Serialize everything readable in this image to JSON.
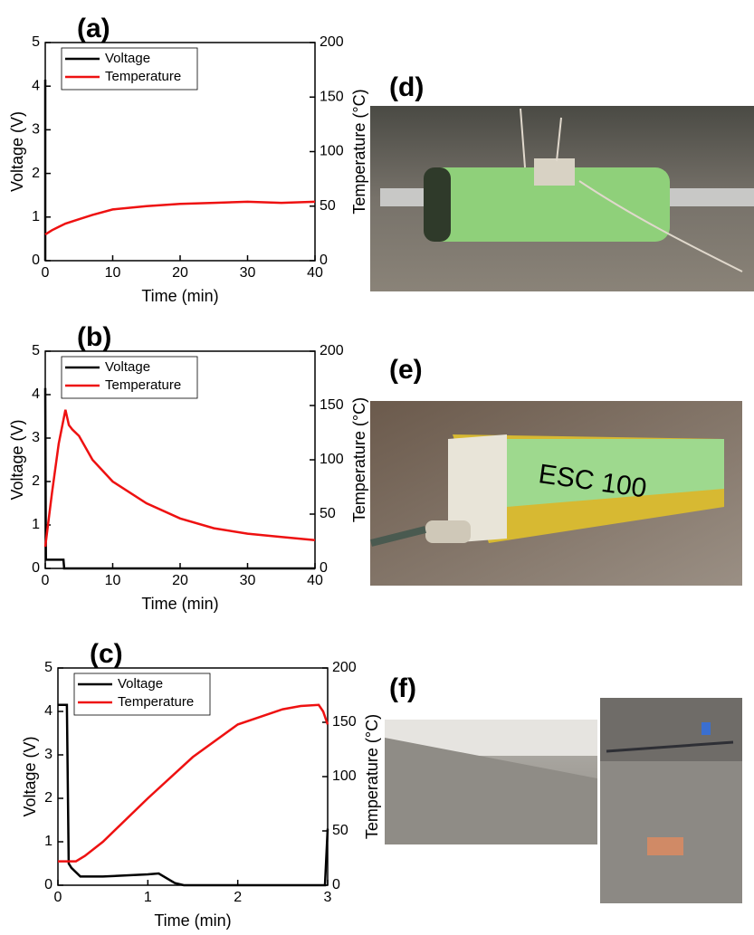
{
  "chart_data": [
    {
      "type": "line",
      "panel": "(a)",
      "x_label": "Time (min)",
      "y_label": "Voltage (V)",
      "y2_label": "Temperature (°C)",
      "xlim": [
        0,
        40
      ],
      "xticks": [
        0,
        10,
        20,
        30,
        40
      ],
      "ylim": [
        0,
        5
      ],
      "yticks": [
        0,
        1,
        2,
        3,
        4,
        5
      ],
      "y2lim": [
        0,
        200
      ],
      "y2ticks": [
        0,
        50,
        100,
        150,
        200
      ],
      "series": [
        {
          "name": "Voltage",
          "color": "#000000",
          "x": [
            0,
            0
          ],
          "values": [
            4.15,
            0
          ]
        },
        {
          "name": "Temperature",
          "color": "#ee1111",
          "axis": "y2",
          "x": [
            0,
            1,
            2,
            3,
            5,
            7,
            10,
            15,
            20,
            25,
            30,
            35,
            40
          ],
          "values": [
            24,
            28,
            31,
            34,
            38,
            42,
            47,
            50,
            52,
            53,
            54,
            53,
            54
          ]
        }
      ]
    },
    {
      "type": "line",
      "panel": "(b)",
      "x_label": "Time (min)",
      "y_label": "Voltage (V)",
      "y2_label": "Temperature (°C)",
      "xlim": [
        0,
        40
      ],
      "xticks": [
        0,
        10,
        20,
        30,
        40
      ],
      "ylim": [
        0,
        5
      ],
      "yticks": [
        0,
        1,
        2,
        3,
        4,
        5
      ],
      "y2lim": [
        0,
        200
      ],
      "y2ticks": [
        0,
        50,
        100,
        150,
        200
      ],
      "series": [
        {
          "name": "Voltage",
          "color": "#000000",
          "x": [
            0,
            0.1,
            2.7,
            2.8,
            40
          ],
          "values": [
            4.15,
            0.2,
            0.2,
            0,
            0
          ]
        },
        {
          "name": "Temperature",
          "color": "#ee1111",
          "axis": "y2",
          "x": [
            0,
            1,
            2,
            3,
            3.5,
            4,
            5,
            7,
            10,
            15,
            20,
            25,
            30,
            35,
            40
          ],
          "values": [
            20,
            70,
            115,
            146,
            132,
            128,
            122,
            100,
            80,
            60,
            46,
            37,
            32,
            29,
            26
          ]
        }
      ]
    },
    {
      "type": "line",
      "panel": "(c)",
      "x_label": "Time (min)",
      "y_label": "Voltage (V)",
      "y2_label": "Temperature (°C)",
      "xlim": [
        0,
        3
      ],
      "xticks": [
        0,
        1,
        2,
        3
      ],
      "ylim": [
        0,
        5
      ],
      "yticks": [
        0,
        1,
        2,
        3,
        4,
        5
      ],
      "y2lim": [
        0,
        200
      ],
      "y2ticks": [
        0,
        50,
        100,
        150,
        200
      ],
      "series": [
        {
          "name": "Voltage",
          "color": "#000000",
          "x": [
            0,
            0.1,
            0.12,
            0.15,
            0.25,
            0.5,
            1.0,
            1.12,
            1.3,
            1.4,
            2.97,
            3.0
          ],
          "values": [
            4.15,
            4.15,
            0.5,
            0.4,
            0.2,
            0.2,
            0.25,
            0.27,
            0.05,
            0,
            0,
            1.3
          ]
        },
        {
          "name": "Temperature",
          "color": "#ee1111",
          "axis": "y2",
          "x": [
            0,
            0.2,
            0.3,
            0.5,
            1.0,
            1.5,
            2.0,
            2.5,
            2.7,
            2.9,
            2.95,
            3.0
          ],
          "values": [
            22,
            22,
            27,
            40,
            80,
            118,
            148,
            162,
            165,
            166,
            160,
            148
          ]
        }
      ]
    }
  ],
  "photos": [
    {
      "label": "(d)"
    },
    {
      "label": "(e)"
    },
    {
      "label": "(f)"
    }
  ]
}
